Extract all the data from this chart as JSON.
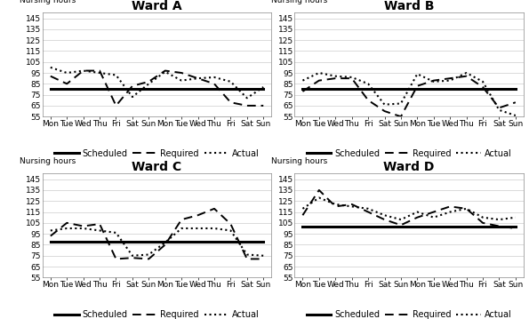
{
  "x_labels": [
    "Mon",
    "Tue",
    "Wed",
    "Thu",
    "Fri",
    "Sat",
    "Sun",
    "Mon",
    "Tue",
    "Wed",
    "Thu",
    "Fri",
    "Sat",
    "Sun"
  ],
  "wards": [
    {
      "title": "Ward A",
      "scheduled": [
        80,
        80,
        80,
        80,
        80,
        80,
        80,
        80,
        80,
        80,
        80,
        80,
        80,
        80
      ],
      "required": [
        92,
        85,
        97,
        97,
        65,
        83,
        87,
        97,
        95,
        90,
        85,
        68,
        65,
        65
      ],
      "actual": [
        100,
        95,
        97,
        95,
        93,
        73,
        85,
        96,
        88,
        90,
        91,
        87,
        72,
        82
      ]
    },
    {
      "title": "Ward B",
      "scheduled": [
        80,
        80,
        80,
        80,
        80,
        80,
        80,
        80,
        80,
        80,
        80,
        80,
        80,
        80
      ],
      "required": [
        78,
        88,
        90,
        90,
        70,
        60,
        55,
        83,
        88,
        90,
        92,
        82,
        63,
        68
      ],
      "actual": [
        88,
        95,
        92,
        91,
        85,
        66,
        67,
        94,
        87,
        88,
        95,
        87,
        61,
        56
      ]
    },
    {
      "title": "Ward C",
      "scheduled": [
        88,
        88,
        88,
        88,
        88,
        88,
        88,
        88,
        88,
        88,
        88,
        88,
        88,
        88
      ],
      "required": [
        93,
        105,
        102,
        104,
        72,
        73,
        72,
        85,
        108,
        112,
        118,
        104,
        72,
        72
      ],
      "actual": [
        98,
        100,
        100,
        98,
        96,
        75,
        76,
        87,
        100,
        100,
        100,
        98,
        76,
        75
      ]
    },
    {
      "title": "Ward D",
      "scheduled": [
        102,
        102,
        102,
        102,
        102,
        102,
        102,
        102,
        102,
        102,
        102,
        102,
        102,
        102
      ],
      "required": [
        112,
        135,
        120,
        122,
        115,
        108,
        103,
        110,
        115,
        120,
        118,
        105,
        102,
        100
      ],
      "actual": [
        118,
        128,
        122,
        120,
        118,
        112,
        108,
        115,
        110,
        115,
        118,
        110,
        108,
        110
      ]
    }
  ],
  "ylim": [
    55,
    150
  ],
  "yticks": [
    55,
    65,
    75,
    85,
    95,
    105,
    115,
    125,
    135,
    145
  ],
  "ylabel": "Nursing hours",
  "legend_labels": [
    "Scheduled",
    "Required",
    "Actual"
  ],
  "background_color": "#ffffff",
  "grid_color": "#cccccc",
  "title_fontsize": 10,
  "label_fontsize": 6.5,
  "tick_fontsize": 6.5,
  "legend_fontsize": 7
}
